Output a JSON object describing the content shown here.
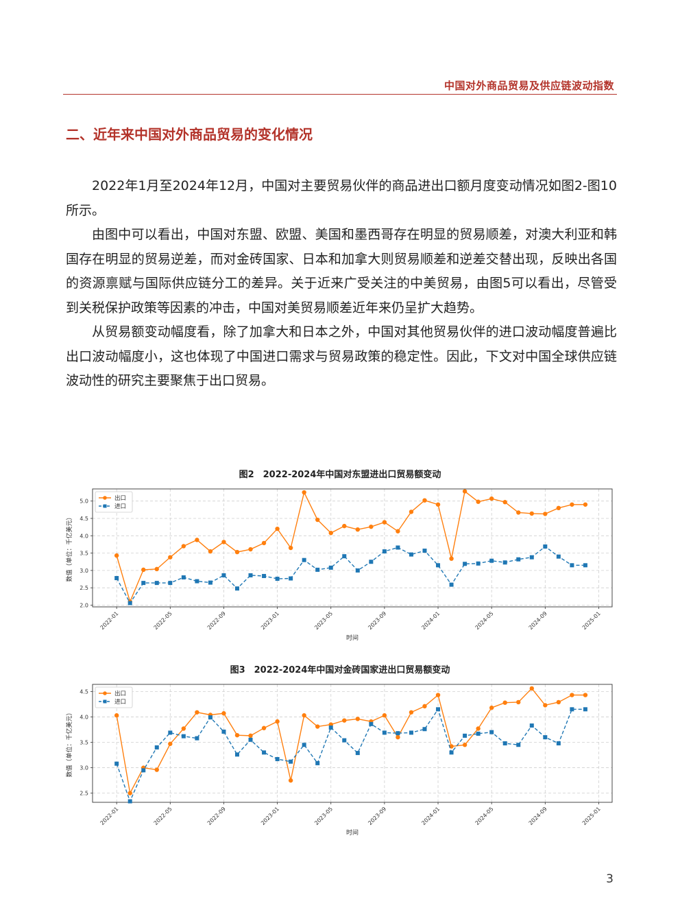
{
  "header": {
    "title": "中国对外商品贸易及供应链波动指数"
  },
  "section": {
    "heading": "二、近年来中国对外商品贸易的变化情况"
  },
  "paragraphs": [
    "2022年1月至2024年12月，中国对主要贸易伙伴的商品进出口额月度变动情况如图2-图10所示。",
    "由图中可以看出，中国对东盟、欧盟、美国和墨西哥存在明显的贸易顺差，对澳大利亚和韩国存在明显的贸易逆差，而对金砖国家、日本和加拿大则贸易顺差和逆差交替出现，反映出各国的资源禀赋与国际供应链分工的差异。关于近来广受关注的中美贸易，由图5可以看出，尽管受到关税保护政策等因素的冲击，中国对美贸易顺差近年来仍呈扩大趋势。",
    "从贸易额变动幅度看，除了加拿大和日本之外，中国对其他贸易伙伴的进口波动幅度普遍比出口波动幅度小，这也体现了中国进口需求与贸易政策的稳定性。因此，下文对中国全球供应链波动性的研究主要聚焦于出口贸易。"
  ],
  "page_number": "3",
  "chart_data": [
    {
      "type": "line",
      "title": "图2　2022-2024年中国对东盟进出口贸易额变动",
      "xlabel": "时间",
      "ylabel": "数值（单位：千亿美元）",
      "x_tick_labels": [
        "2022-01",
        "2022-05",
        "2022-09",
        "2023-01",
        "2023-05",
        "2023-09",
        "2024-01",
        "2024-05",
        "2024-09",
        "2025-01"
      ],
      "y_ticks": [
        2.0,
        2.5,
        3.0,
        3.5,
        4.0,
        4.5,
        5.0
      ],
      "ylim": [
        1.95,
        5.35
      ],
      "grid": true,
      "legend_position": "top-left",
      "x": [
        "2022-01",
        "2022-02",
        "2022-03",
        "2022-04",
        "2022-05",
        "2022-06",
        "2022-07",
        "2022-08",
        "2022-09",
        "2022-10",
        "2022-11",
        "2022-12",
        "2023-01",
        "2023-02",
        "2023-03",
        "2023-04",
        "2023-05",
        "2023-06",
        "2023-07",
        "2023-08",
        "2023-09",
        "2023-10",
        "2023-11",
        "2023-12",
        "2024-01",
        "2024-02",
        "2024-03",
        "2024-04",
        "2024-05",
        "2024-06",
        "2024-07",
        "2024-08",
        "2024-09",
        "2024-10",
        "2024-11",
        "2024-12"
      ],
      "series": [
        {
          "name": "出口",
          "color": "#ff7f0e",
          "marker": "circle",
          "dash": "solid",
          "values": [
            3.43,
            2.1,
            3.02,
            3.04,
            3.38,
            3.7,
            3.88,
            3.55,
            3.82,
            3.53,
            3.61,
            3.79,
            4.2,
            3.65,
            5.25,
            4.46,
            4.08,
            4.28,
            4.18,
            4.26,
            4.39,
            4.13,
            4.69,
            5.02,
            4.9,
            3.34,
            5.28,
            4.98,
            5.07,
            4.97,
            4.67,
            4.64,
            4.63,
            4.8,
            4.9,
            4.9
          ]
        },
        {
          "name": "进口",
          "color": "#1f77b4",
          "marker": "square",
          "dash": "dashed",
          "values": [
            2.78,
            2.06,
            2.64,
            2.64,
            2.64,
            2.8,
            2.69,
            2.65,
            2.86,
            2.48,
            2.86,
            2.84,
            2.76,
            2.77,
            3.3,
            3.02,
            3.08,
            3.41,
            3.0,
            3.25,
            3.55,
            3.66,
            3.46,
            3.57,
            3.15,
            2.59,
            3.19,
            3.2,
            3.28,
            3.23,
            3.32,
            3.38,
            3.69,
            3.4,
            3.15,
            3.15
          ]
        }
      ]
    },
    {
      "type": "line",
      "title": "图3　2022-2024年中国对金砖国家进出口贸易额变动",
      "xlabel": "时间",
      "ylabel": "数值（单位：千亿美元）",
      "x_tick_labels": [
        "2022-01",
        "2022-05",
        "2022-09",
        "2023-01",
        "2023-05",
        "2023-09",
        "2024-01",
        "2024-05",
        "2024-09",
        "2025-01"
      ],
      "y_ticks": [
        2.5,
        3.0,
        3.5,
        4.0,
        4.5
      ],
      "ylim": [
        2.32,
        4.64
      ],
      "grid": true,
      "legend_position": "top-left",
      "x": [
        "2022-01",
        "2022-02",
        "2022-03",
        "2022-04",
        "2022-05",
        "2022-06",
        "2022-07",
        "2022-08",
        "2022-09",
        "2022-10",
        "2022-11",
        "2022-12",
        "2023-01",
        "2023-02",
        "2023-03",
        "2023-04",
        "2023-05",
        "2023-06",
        "2023-07",
        "2023-08",
        "2023-09",
        "2023-10",
        "2023-11",
        "2023-12",
        "2024-01",
        "2024-02",
        "2024-03",
        "2024-04",
        "2024-05",
        "2024-06",
        "2024-07",
        "2024-08",
        "2024-09",
        "2024-10",
        "2024-11",
        "2024-12"
      ],
      "series": [
        {
          "name": "出口",
          "color": "#ff7f0e",
          "marker": "circle",
          "dash": "solid",
          "values": [
            4.03,
            2.5,
            3.0,
            2.96,
            3.47,
            3.77,
            4.09,
            4.04,
            4.07,
            3.64,
            3.63,
            3.78,
            3.91,
            2.75,
            4.03,
            3.81,
            3.85,
            3.93,
            3.96,
            3.91,
            4.03,
            3.6,
            4.09,
            4.21,
            4.43,
            3.42,
            3.45,
            3.77,
            4.18,
            4.28,
            4.29,
            4.56,
            4.23,
            4.29,
            4.43,
            4.43
          ]
        },
        {
          "name": "进口",
          "color": "#1f77b4",
          "marker": "square",
          "dash": "dashed",
          "values": [
            3.08,
            2.34,
            2.95,
            3.4,
            3.69,
            3.62,
            3.58,
            3.99,
            3.71,
            3.26,
            3.55,
            3.3,
            3.17,
            3.12,
            3.45,
            3.09,
            3.79,
            3.54,
            3.29,
            3.86,
            3.69,
            3.68,
            3.69,
            3.76,
            4.15,
            3.3,
            3.63,
            3.67,
            3.7,
            3.48,
            3.45,
            3.83,
            3.6,
            3.48,
            4.15,
            4.15
          ]
        }
      ]
    }
  ]
}
